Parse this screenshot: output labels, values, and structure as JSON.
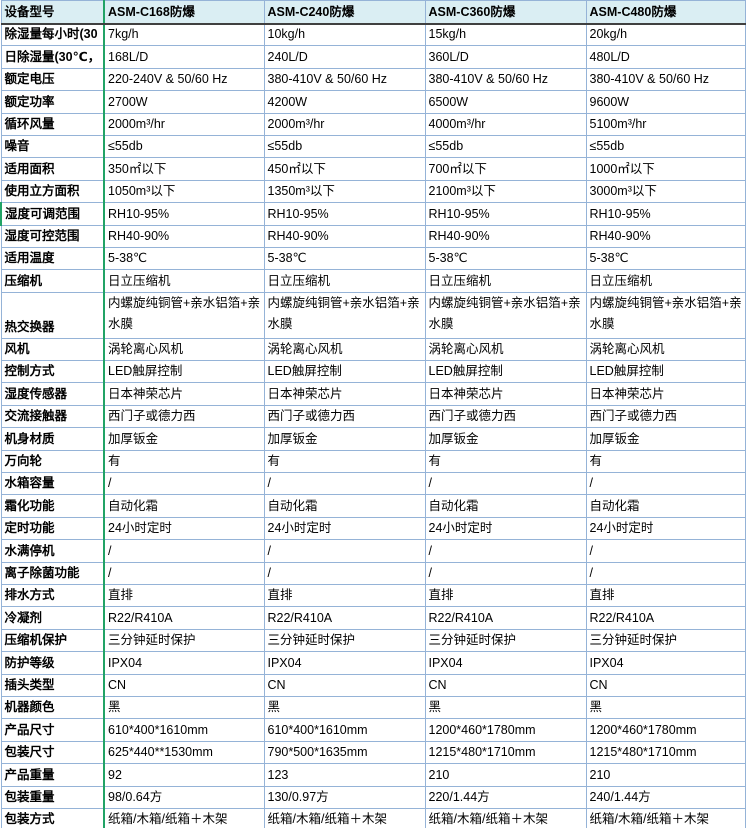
{
  "colors": {
    "header_bg": "#DAEEF3",
    "grid_line": "#95B3D7",
    "green_divider": "#21A366",
    "header_bottom_border": "#404040",
    "text": "#000000"
  },
  "table": {
    "header": {
      "col0": "设备型号",
      "models": [
        "ASM-C168防爆",
        "ASM-C240防爆",
        "ASM-C360防爆",
        "ASM-C480防爆"
      ]
    },
    "rows": [
      {
        "label": "除湿量每小时(30",
        "values": [
          "7kg/h",
          "10kg/h",
          "15kg/h",
          "20kg/h"
        ]
      },
      {
        "label": "日除湿量(30℃，",
        "values": [
          "168L/D",
          "240L/D",
          "360L/D",
          "480L/D"
        ]
      },
      {
        "label": "额定电压",
        "values": [
          "220-240V & 50/60 Hz",
          "380-410V & 50/60 Hz",
          "380-410V & 50/60 Hz",
          "380-410V & 50/60 Hz"
        ]
      },
      {
        "label": "额定功率",
        "values": [
          "2700W",
          "4200W",
          "6500W",
          "9600W"
        ]
      },
      {
        "label": "循环风量",
        "values": [
          "2000m³/hr",
          "2000m³/hr",
          "4000m³/hr",
          "5100m³/hr"
        ]
      },
      {
        "label": "噪音",
        "values": [
          "≤55db",
          "≤55db",
          "≤55db",
          "≤55db"
        ]
      },
      {
        "label": "适用面积",
        "values": [
          "350㎡以下",
          "450㎡以下",
          "700㎡以下",
          "1000㎡以下"
        ]
      },
      {
        "label": "使用立方面积",
        "values": [
          "1050m³以下",
          "1350m³以下",
          "2100m³以下",
          "3000m³以下"
        ]
      },
      {
        "label": "湿度可调范围",
        "values": [
          "RH10-95%",
          "RH10-95%",
          "RH10-95%",
          "RH10-95%"
        ],
        "accent": true
      },
      {
        "label": "湿度可控范围",
        "values": [
          "RH40-90%",
          "RH40-90%",
          "RH40-90%",
          "RH40-90%"
        ]
      },
      {
        "label": "适用温度",
        "values": [
          "5-38℃",
          "5-38℃",
          "5-38℃",
          "5-38℃"
        ]
      },
      {
        "label": "压缩机",
        "values": [
          "日立压缩机",
          "日立压缩机",
          "日立压缩机",
          "日立压缩机"
        ]
      },
      {
        "label": "热交换器",
        "values": [
          "内螺旋纯铜管+亲水铝箔+亲水膜",
          "内螺旋纯铜管+亲水铝箔+亲水膜",
          "内螺旋纯铜管+亲水铝箔+亲水膜",
          "内螺旋纯铜管+亲水铝箔+亲水膜"
        ],
        "tall": true
      },
      {
        "label": "风机",
        "values": [
          "涡轮离心风机",
          "涡轮离心风机",
          "涡轮离心风机",
          "涡轮离心风机"
        ]
      },
      {
        "label": "控制方式",
        "values": [
          "LED触屏控制",
          "LED触屏控制",
          "LED触屏控制",
          "LED触屏控制"
        ]
      },
      {
        "label": "湿度传感器",
        "values": [
          "日本神荣芯片",
          "日本神荣芯片",
          "日本神荣芯片",
          "日本神荣芯片"
        ]
      },
      {
        "label": "交流接触器",
        "values": [
          "西门子或德力西",
          "西门子或德力西",
          "西门子或德力西",
          "西门子或德力西"
        ]
      },
      {
        "label": "机身材质",
        "values": [
          "加厚钣金",
          "加厚钣金",
          "加厚钣金",
          "加厚钣金"
        ]
      },
      {
        "label": "万向轮",
        "values": [
          "有",
          "有",
          "有",
          "有"
        ]
      },
      {
        "label": "水箱容量",
        "values": [
          "/",
          "/",
          "/",
          "/"
        ]
      },
      {
        "label": "霜化功能",
        "values": [
          "自动化霜",
          "自动化霜",
          "自动化霜",
          "自动化霜"
        ]
      },
      {
        "label": "定时功能",
        "values": [
          "24小时定时",
          "24小时定时",
          "24小时定时",
          "24小时定时"
        ]
      },
      {
        "label": "水满停机",
        "values": [
          "/",
          "/",
          "/",
          "/"
        ]
      },
      {
        "label": "离子除菌功能",
        "values": [
          "/",
          "/",
          "/",
          "/"
        ]
      },
      {
        "label": "排水方式",
        "values": [
          "直排",
          "直排",
          "直排",
          "直排"
        ]
      },
      {
        "label": "冷凝剂",
        "values": [
          "R22/R410A",
          "R22/R410A",
          "R22/R410A",
          "R22/R410A"
        ]
      },
      {
        "label": "压缩机保护",
        "values": [
          "三分钟延时保护",
          "三分钟延时保护",
          "三分钟延时保护",
          "三分钟延时保护"
        ]
      },
      {
        "label": "防护等级",
        "values": [
          "IPX04",
          "IPX04",
          "IPX04",
          "IPX04"
        ]
      },
      {
        "label": "插头类型",
        "values": [
          "CN",
          "CN",
          "CN",
          "CN"
        ]
      },
      {
        "label": "机器颜色",
        "values": [
          "黑",
          "黑",
          "黑",
          "黑"
        ]
      },
      {
        "label": "产品尺寸",
        "values": [
          "610*400*1610mm",
          "610*400*1610mm",
          "1200*460*1780mm",
          "1200*460*1780mm"
        ]
      },
      {
        "label": "包装尺寸",
        "values": [
          "625*440**1530mm",
          "790*500*1635mm",
          "1215*480*1710mm",
          "1215*480*1710mm"
        ]
      },
      {
        "label": "产品重量",
        "values": [
          "92",
          "123",
          "210",
          "210"
        ]
      },
      {
        "label": "包装重量",
        "values": [
          "98/0.64方",
          "130/0.97方",
          "220/1.44方",
          "240/1.44方"
        ]
      },
      {
        "label": "包装方式",
        "values": [
          "纸箱/木箱/纸箱＋木架",
          "纸箱/木箱/纸箱＋木架",
          "纸箱/木箱/纸箱＋木架",
          "纸箱/木箱/纸箱＋木架"
        ]
      }
    ]
  }
}
